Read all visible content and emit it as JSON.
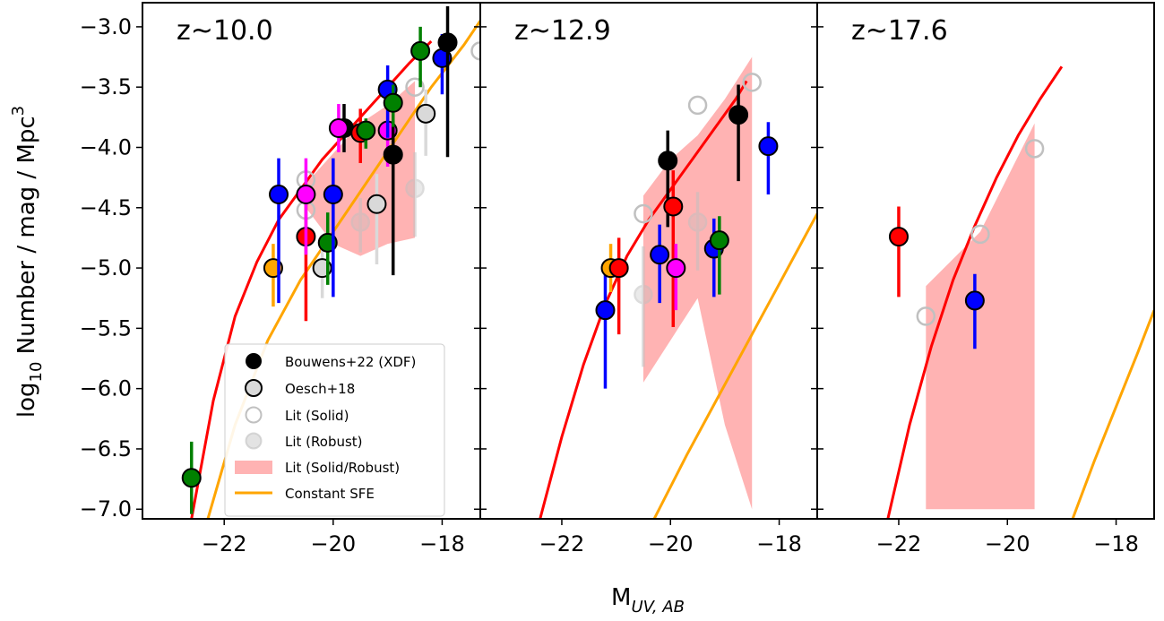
{
  "chart_data": {
    "type": "scatter",
    "ylabel_prefix": "log",
    "ylabel_sub": "10",
    "ylabel_main": " Number / mag / Mpc",
    "ylabel_sup": "3",
    "xlabel_main": "M",
    "xlabel_sub": "UV, AB",
    "xlim": [
      -23.5,
      -17.3
    ],
    "ylim": [
      -7.08,
      -2.8
    ],
    "xticks": [
      -22,
      -20,
      -18
    ],
    "yticks": [
      -3.0,
      -3.5,
      -4.0,
      -4.5,
      -5.0,
      -5.5,
      -6.0,
      -6.5,
      -7.0
    ],
    "xtick_labels": [
      "−22",
      "−20",
      "−18"
    ],
    "ytick_labels": [
      "−3.0",
      "−3.5",
      "−4.0",
      "−4.5",
      "−5.0",
      "−5.5",
      "−6.0",
      "−6.5",
      "−7.0"
    ],
    "colors": {
      "red": "#ff0000",
      "orange": "#ffa500",
      "black": "#000000",
      "blue": "#0000ff",
      "green": "#008000",
      "magenta": "#ff00ff",
      "band": "#ffb3b3",
      "lit_edge": "#c0c0c0",
      "oesch_fill": "#d9d9d9"
    },
    "legend": {
      "position": "lower-left of first panel",
      "entries": [
        {
          "label": "Bouwens+22 (XDF)",
          "marker": "black-dot"
        },
        {
          "label": "Oesch+18",
          "marker": "grey-dot-black-edge"
        },
        {
          "label": "Lit (Solid)",
          "marker": "open-circle"
        },
        {
          "label": "Lit (Robust)",
          "marker": "faint-filled-circle"
        },
        {
          "label": "Lit (Solid/Robust)",
          "marker": "pink-band"
        },
        {
          "label": "Constant SFE",
          "marker": "orange-line"
        }
      ]
    },
    "panels": [
      {
        "title": "z~10.0",
        "band": [
          [
            -20.5,
            -4.3
          ],
          [
            -20,
            -4.05
          ],
          [
            -19.5,
            -3.8
          ],
          [
            -19,
            -3.65
          ],
          [
            -18.5,
            -3.45
          ],
          [
            -18.5,
            -4.75
          ],
          [
            -19,
            -4.8
          ],
          [
            -19.5,
            -4.9
          ],
          [
            -20,
            -4.8
          ],
          [
            -20.5,
            -4.5
          ]
        ],
        "red_curve": [
          [
            -22.6,
            -7.08
          ],
          [
            -22.2,
            -6.1
          ],
          [
            -21.8,
            -5.4
          ],
          [
            -21.4,
            -4.95
          ],
          [
            -21.0,
            -4.6
          ],
          [
            -20.6,
            -4.35
          ],
          [
            -20.2,
            -4.1
          ],
          [
            -19.8,
            -3.9
          ],
          [
            -19.4,
            -3.7
          ],
          [
            -19.0,
            -3.5
          ],
          [
            -18.6,
            -3.3
          ],
          [
            -18.2,
            -3.12
          ]
        ],
        "sfe_curve": [
          [
            -22.3,
            -7.08
          ],
          [
            -21.8,
            -6.3
          ],
          [
            -21.2,
            -5.6
          ],
          [
            -20.6,
            -5.1
          ],
          [
            -20.0,
            -4.7
          ],
          [
            -19.4,
            -4.3
          ],
          [
            -18.8,
            -3.9
          ],
          [
            -18.2,
            -3.5
          ],
          [
            -17.6,
            -3.15
          ],
          [
            -17.3,
            -2.95
          ]
        ],
        "points": [
          {
            "x": -22.6,
            "y": -6.74,
            "yerr": [
              0.3,
              0.3
            ],
            "color": "green",
            "kind": "filled"
          },
          {
            "x": -21.1,
            "y": -5.0,
            "yerr": [
              0.32,
              0.2
            ],
            "color": "orange",
            "kind": "filled"
          },
          {
            "x": -21.0,
            "y": -4.39,
            "yerr": [
              0.9,
              0.3
            ],
            "color": "blue",
            "kind": "filled"
          },
          {
            "x": -20.5,
            "y": -4.74,
            "yerr": [
              0.7,
              0.3
            ],
            "color": "red",
            "kind": "filled"
          },
          {
            "x": -20.5,
            "y": -4.39,
            "yerr": [
              0.5,
              0.3
            ],
            "color": "magenta",
            "kind": "filled"
          },
          {
            "x": -20.1,
            "y": -4.79,
            "yerr": [
              0.35,
              0.25
            ],
            "color": "green",
            "kind": "filled"
          },
          {
            "x": -20.0,
            "y": -4.39,
            "yerr": [
              0.85,
              0.3
            ],
            "color": "blue",
            "kind": "filled"
          },
          {
            "x": -20.2,
            "y": -5.0,
            "yerr": [
              0.25,
              0.2
            ],
            "color": "oesch",
            "kind": "oesch"
          },
          {
            "x": -19.2,
            "y": -4.47,
            "yerr": [
              0.5,
              0.25
            ],
            "color": "oesch",
            "kind": "oesch"
          },
          {
            "x": -18.3,
            "y": -3.72,
            "yerr": [
              0.35,
              0.2
            ],
            "color": "oesch",
            "kind": "oesch"
          },
          {
            "x": -19.8,
            "y": -3.84,
            "yerr": [
              0.2,
              0.2
            ],
            "color": "black",
            "kind": "filled"
          },
          {
            "x": -19.9,
            "y": -3.84,
            "yerr": [
              0.2,
              0.2
            ],
            "color": "magenta",
            "kind": "filled"
          },
          {
            "x": -19.5,
            "y": -3.88,
            "yerr": [
              0.25,
              0.2
            ],
            "color": "red",
            "kind": "filled"
          },
          {
            "x": -19.4,
            "y": -3.86,
            "yerr": [
              0.15,
              0.1
            ],
            "color": "green",
            "kind": "filled"
          },
          {
            "x": -19.0,
            "y": -3.86,
            "yerr": [
              0.3,
              0.3
            ],
            "color": "magenta",
            "kind": "filled"
          },
          {
            "x": -19.0,
            "y": -3.52,
            "yerr": [
              0.4,
              0.2
            ],
            "color": "blue",
            "kind": "filled"
          },
          {
            "x": -18.9,
            "y": -4.06,
            "yerr": [
              1.0,
              0.28
            ],
            "color": "black",
            "kind": "filled"
          },
          {
            "x": -18.9,
            "y": -3.63,
            "yerr": [
              0.2,
              0.15
            ],
            "color": "green",
            "kind": "filled"
          },
          {
            "x": -18.4,
            "y": -3.2,
            "yerr": [
              0.3,
              0.2
            ],
            "color": "green",
            "kind": "filled"
          },
          {
            "x": -18.0,
            "y": -3.26,
            "yerr": [
              0.3,
              0.2
            ],
            "color": "blue",
            "kind": "filled"
          },
          {
            "x": -17.9,
            "y": -3.13,
            "yerr": [
              0.95,
              0.3
            ],
            "color": "black",
            "kind": "filled"
          },
          {
            "x": -20.5,
            "y": -4.27,
            "yerr": [
              0,
              0
            ],
            "color": "lit",
            "kind": "solid"
          },
          {
            "x": -20.5,
            "y": -4.52,
            "yerr": [
              0,
              0
            ],
            "color": "lit",
            "kind": "solid"
          },
          {
            "x": -18.5,
            "y": -3.5,
            "yerr": [
              0,
              0
            ],
            "color": "lit",
            "kind": "solid"
          },
          {
            "x": -17.3,
            "y": -3.2,
            "yerr": [
              0,
              0
            ],
            "color": "lit",
            "kind": "solid"
          },
          {
            "x": -19.5,
            "y": -4.62,
            "yerr": [
              0.25,
              0.2
            ],
            "color": "lit",
            "kind": "robust"
          },
          {
            "x": -18.5,
            "y": -4.34,
            "yerr": [
              0.4,
              0.3
            ],
            "color": "lit",
            "kind": "robust"
          }
        ]
      },
      {
        "title": "z~12.9",
        "band": [
          [
            -20.5,
            -4.4
          ],
          [
            -20,
            -4.1
          ],
          [
            -19.5,
            -3.9
          ],
          [
            -19,
            -3.6
          ],
          [
            -18.5,
            -3.25
          ],
          [
            -18.5,
            -7.0
          ],
          [
            -19,
            -6.3
          ],
          [
            -19.5,
            -5.25
          ],
          [
            -20,
            -5.6
          ],
          [
            -20.5,
            -5.95
          ]
        ],
        "red_curve": [
          [
            -22.4,
            -7.08
          ],
          [
            -22.0,
            -6.4
          ],
          [
            -21.6,
            -5.8
          ],
          [
            -21.2,
            -5.3
          ],
          [
            -20.8,
            -4.9
          ],
          [
            -20.4,
            -4.6
          ],
          [
            -20.0,
            -4.35
          ],
          [
            -19.6,
            -4.1
          ],
          [
            -19.2,
            -3.85
          ],
          [
            -18.8,
            -3.6
          ],
          [
            -18.6,
            -3.45
          ]
        ],
        "sfe_curve": [
          [
            -20.3,
            -7.08
          ],
          [
            -19.7,
            -6.55
          ],
          [
            -19.1,
            -6.05
          ],
          [
            -18.5,
            -5.55
          ],
          [
            -17.9,
            -5.05
          ],
          [
            -17.3,
            -4.55
          ]
        ],
        "points": [
          {
            "x": -21.2,
            "y": -5.35,
            "yerr": [
              0.65,
              0.3
            ],
            "color": "blue",
            "kind": "filled"
          },
          {
            "x": -21.1,
            "y": -5.0,
            "yerr": [
              0.2,
              0.2
            ],
            "color": "orange",
            "kind": "filled"
          },
          {
            "x": -20.95,
            "y": -5.0,
            "yerr": [
              0.55,
              0.25
            ],
            "color": "red",
            "kind": "filled"
          },
          {
            "x": -20.2,
            "y": -4.89,
            "yerr": [
              0.4,
              0.25
            ],
            "color": "blue",
            "kind": "filled"
          },
          {
            "x": -20.05,
            "y": -4.11,
            "yerr": [
              0.55,
              0.25
            ],
            "color": "black",
            "kind": "filled"
          },
          {
            "x": -19.95,
            "y": -4.49,
            "yerr": [
              1.0,
              0.3
            ],
            "color": "red",
            "kind": "filled"
          },
          {
            "x": -19.9,
            "y": -5.0,
            "yerr": [
              0.35,
              0.2
            ],
            "color": "magenta",
            "kind": "filled"
          },
          {
            "x": -19.2,
            "y": -4.84,
            "yerr": [
              0.4,
              0.25
            ],
            "color": "blue",
            "kind": "filled"
          },
          {
            "x": -19.1,
            "y": -4.77,
            "yerr": [
              0.45,
              0.2
            ],
            "color": "green",
            "kind": "filled"
          },
          {
            "x": -18.75,
            "y": -3.73,
            "yerr": [
              0.55,
              0.25
            ],
            "color": "black",
            "kind": "filled"
          },
          {
            "x": -18.2,
            "y": -3.99,
            "yerr": [
              0.4,
              0.2
            ],
            "color": "blue",
            "kind": "filled"
          },
          {
            "x": -20.5,
            "y": -4.55,
            "yerr": [
              0,
              0
            ],
            "color": "lit",
            "kind": "solid"
          },
          {
            "x": -19.5,
            "y": -3.65,
            "yerr": [
              0,
              0
            ],
            "color": "lit",
            "kind": "solid"
          },
          {
            "x": -18.5,
            "y": -3.46,
            "yerr": [
              0,
              0
            ],
            "color": "lit",
            "kind": "solid"
          },
          {
            "x": -20.5,
            "y": -5.22,
            "yerr": [
              0.6,
              0.4
            ],
            "color": "lit",
            "kind": "robust"
          },
          {
            "x": -19.5,
            "y": -4.62,
            "yerr": [
              0.4,
              0.25
            ],
            "color": "lit",
            "kind": "robust"
          }
        ]
      },
      {
        "title": "z~17.6",
        "band": [
          [
            -21.5,
            -5.15
          ],
          [
            -20.5,
            -4.7
          ],
          [
            -19.5,
            -3.8
          ],
          [
            -19.5,
            -7.0
          ],
          [
            -21.5,
            -7.0
          ]
        ],
        "red_curve": [
          [
            -22.2,
            -7.08
          ],
          [
            -21.8,
            -6.3
          ],
          [
            -21.4,
            -5.65
          ],
          [
            -21.0,
            -5.1
          ],
          [
            -20.6,
            -4.65
          ],
          [
            -20.2,
            -4.25
          ],
          [
            -19.8,
            -3.9
          ],
          [
            -19.4,
            -3.6
          ],
          [
            -19.0,
            -3.33
          ]
        ],
        "sfe_curve": [
          [
            -18.8,
            -7.08
          ],
          [
            -18.4,
            -6.6
          ],
          [
            -18.0,
            -6.15
          ],
          [
            -17.6,
            -5.7
          ],
          [
            -17.3,
            -5.35
          ]
        ],
        "points": [
          {
            "x": -22.0,
            "y": -4.74,
            "yerr": [
              0.5,
              0.25
            ],
            "color": "red",
            "kind": "filled"
          },
          {
            "x": -20.6,
            "y": -5.27,
            "yerr": [
              0.4,
              0.22
            ],
            "color": "blue",
            "kind": "filled"
          },
          {
            "x": -21.5,
            "y": -5.4,
            "yerr": [
              0,
              0
            ],
            "color": "lit",
            "kind": "solid"
          },
          {
            "x": -20.5,
            "y": -4.72,
            "yerr": [
              0,
              0
            ],
            "color": "lit",
            "kind": "solid"
          },
          {
            "x": -19.5,
            "y": -4.01,
            "yerr": [
              0,
              0
            ],
            "color": "lit",
            "kind": "solid"
          }
        ]
      }
    ]
  }
}
